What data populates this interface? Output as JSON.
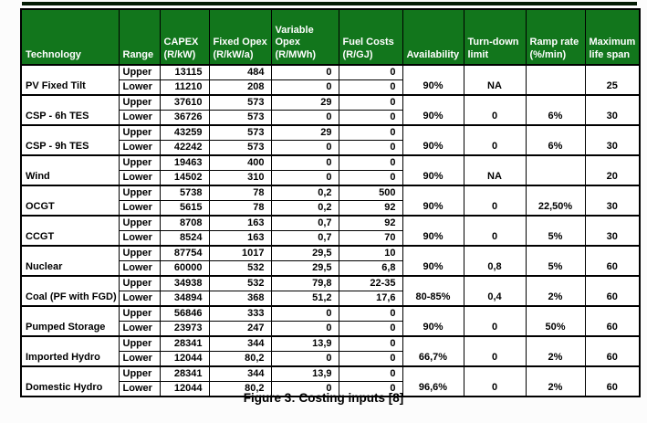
{
  "caption": "Figure 3: Costing inputs [8]",
  "colors": {
    "header_bg": "#12761c",
    "header_text": "#ffffff",
    "border": "#000000",
    "header_bottom_edge": "#0c3f10"
  },
  "table": {
    "headers": [
      "Technology",
      "Range",
      "CAPEX\n(R/kW)",
      "Fixed Opex\n(R/kW/a)",
      "Variable\nOpex\n(R/MWh)",
      "Fuel Costs\n(R/GJ)",
      "Availability",
      "Turn-down\nlimit",
      "Ramp rate\n(%/min)",
      "Maximum\nlife span"
    ],
    "groups": [
      {
        "name": "PV Fixed Tilt",
        "rows": [
          {
            "range": "Upper",
            "capex": "13115",
            "fixed_opex": "484",
            "variable_opex": "0",
            "fuel_costs": "0"
          },
          {
            "range": "Lower",
            "capex": "11210",
            "fixed_opex": "208",
            "variable_opex": "0",
            "fuel_costs": "0"
          }
        ],
        "availability": "90%",
        "turn_down": "NA",
        "ramp_rate": "",
        "life_span": "25"
      },
      {
        "name": "CSP - 6h TES",
        "rows": [
          {
            "range": "Upper",
            "capex": "37610",
            "fixed_opex": "573",
            "variable_opex": "29",
            "fuel_costs": "0"
          },
          {
            "range": "Lower",
            "capex": "36726",
            "fixed_opex": "573",
            "variable_opex": "0",
            "fuel_costs": "0"
          }
        ],
        "availability": "90%",
        "turn_down": "0",
        "ramp_rate": "6%",
        "life_span": "30"
      },
      {
        "name": "CSP - 9h TES",
        "rows": [
          {
            "range": "Upper",
            "capex": "43259",
            "fixed_opex": "573",
            "variable_opex": "29",
            "fuel_costs": "0"
          },
          {
            "range": "Lower",
            "capex": "42242",
            "fixed_opex": "573",
            "variable_opex": "0",
            "fuel_costs": "0"
          }
        ],
        "availability": "90%",
        "turn_down": "0",
        "ramp_rate": "6%",
        "life_span": "30"
      },
      {
        "name": "Wind",
        "rows": [
          {
            "range": "Upper",
            "capex": "19463",
            "fixed_opex": "400",
            "variable_opex": "0",
            "fuel_costs": "0"
          },
          {
            "range": "Lower",
            "capex": "14502",
            "fixed_opex": "310",
            "variable_opex": "0",
            "fuel_costs": "0"
          }
        ],
        "availability": "90%",
        "turn_down": "NA",
        "ramp_rate": "",
        "life_span": "20"
      },
      {
        "name": "OCGT",
        "rows": [
          {
            "range": "Upper",
            "capex": "5738",
            "fixed_opex": "78",
            "variable_opex": "0,2",
            "fuel_costs": "500"
          },
          {
            "range": "Lower",
            "capex": "5615",
            "fixed_opex": "78",
            "variable_opex": "0,2",
            "fuel_costs": "92"
          }
        ],
        "availability": "90%",
        "turn_down": "0",
        "ramp_rate": "22,50%",
        "life_span": "30"
      },
      {
        "name": "CCGT",
        "rows": [
          {
            "range": "Upper",
            "capex": "8708",
            "fixed_opex": "163",
            "variable_opex": "0,7",
            "fuel_costs": "92"
          },
          {
            "range": "Lower",
            "capex": "8524",
            "fixed_opex": "163",
            "variable_opex": "0,7",
            "fuel_costs": "70"
          }
        ],
        "availability": "90%",
        "turn_down": "0",
        "ramp_rate": "5%",
        "life_span": "30"
      },
      {
        "name": "Nuclear",
        "rows": [
          {
            "range": "Upper",
            "capex": "87754",
            "fixed_opex": "1017",
            "variable_opex": "29,5",
            "fuel_costs": "10"
          },
          {
            "range": "Lower",
            "capex": "60000",
            "fixed_opex": "532",
            "variable_opex": "29,5",
            "fuel_costs": "6,8"
          }
        ],
        "availability": "90%",
        "turn_down": "0,8",
        "ramp_rate": "5%",
        "life_span": "60"
      },
      {
        "name": "Coal (PF with FGD)",
        "rows": [
          {
            "range": "Upper",
            "capex": "34938",
            "fixed_opex": "532",
            "variable_opex": "79,8",
            "fuel_costs": "22-35"
          },
          {
            "range": "Lower",
            "capex": "34894",
            "fixed_opex": "368",
            "variable_opex": "51,2",
            "fuel_costs": "17,6"
          }
        ],
        "availability": "80-85%",
        "turn_down": "0,4",
        "ramp_rate": "2%",
        "life_span": "60"
      },
      {
        "name": "Pumped Storage",
        "rows": [
          {
            "range": "Upper",
            "capex": "56846",
            "fixed_opex": "333",
            "variable_opex": "0",
            "fuel_costs": "0"
          },
          {
            "range": "Lower",
            "capex": "23973",
            "fixed_opex": "247",
            "variable_opex": "0",
            "fuel_costs": "0"
          }
        ],
        "availability": "90%",
        "turn_down": "0",
        "ramp_rate": "50%",
        "life_span": "60"
      },
      {
        "name": "Imported Hydro",
        "rows": [
          {
            "range": "Upper",
            "capex": "28341",
            "fixed_opex": "344",
            "variable_opex": "13,9",
            "fuel_costs": "0"
          },
          {
            "range": "Lower",
            "capex": "12044",
            "fixed_opex": "80,2",
            "variable_opex": "0",
            "fuel_costs": "0"
          }
        ],
        "availability": "66,7%",
        "turn_down": "0",
        "ramp_rate": "2%",
        "life_span": "60"
      },
      {
        "name": "Domestic Hydro",
        "rows": [
          {
            "range": "Upper",
            "capex": "28341",
            "fixed_opex": "344",
            "variable_opex": "13,9",
            "fuel_costs": "0"
          },
          {
            "range": "Lower",
            "capex": "12044",
            "fixed_opex": "80,2",
            "variable_opex": "0",
            "fuel_costs": "0"
          }
        ],
        "availability": "96,6%",
        "turn_down": "0",
        "ramp_rate": "2%",
        "life_span": "60"
      }
    ]
  }
}
